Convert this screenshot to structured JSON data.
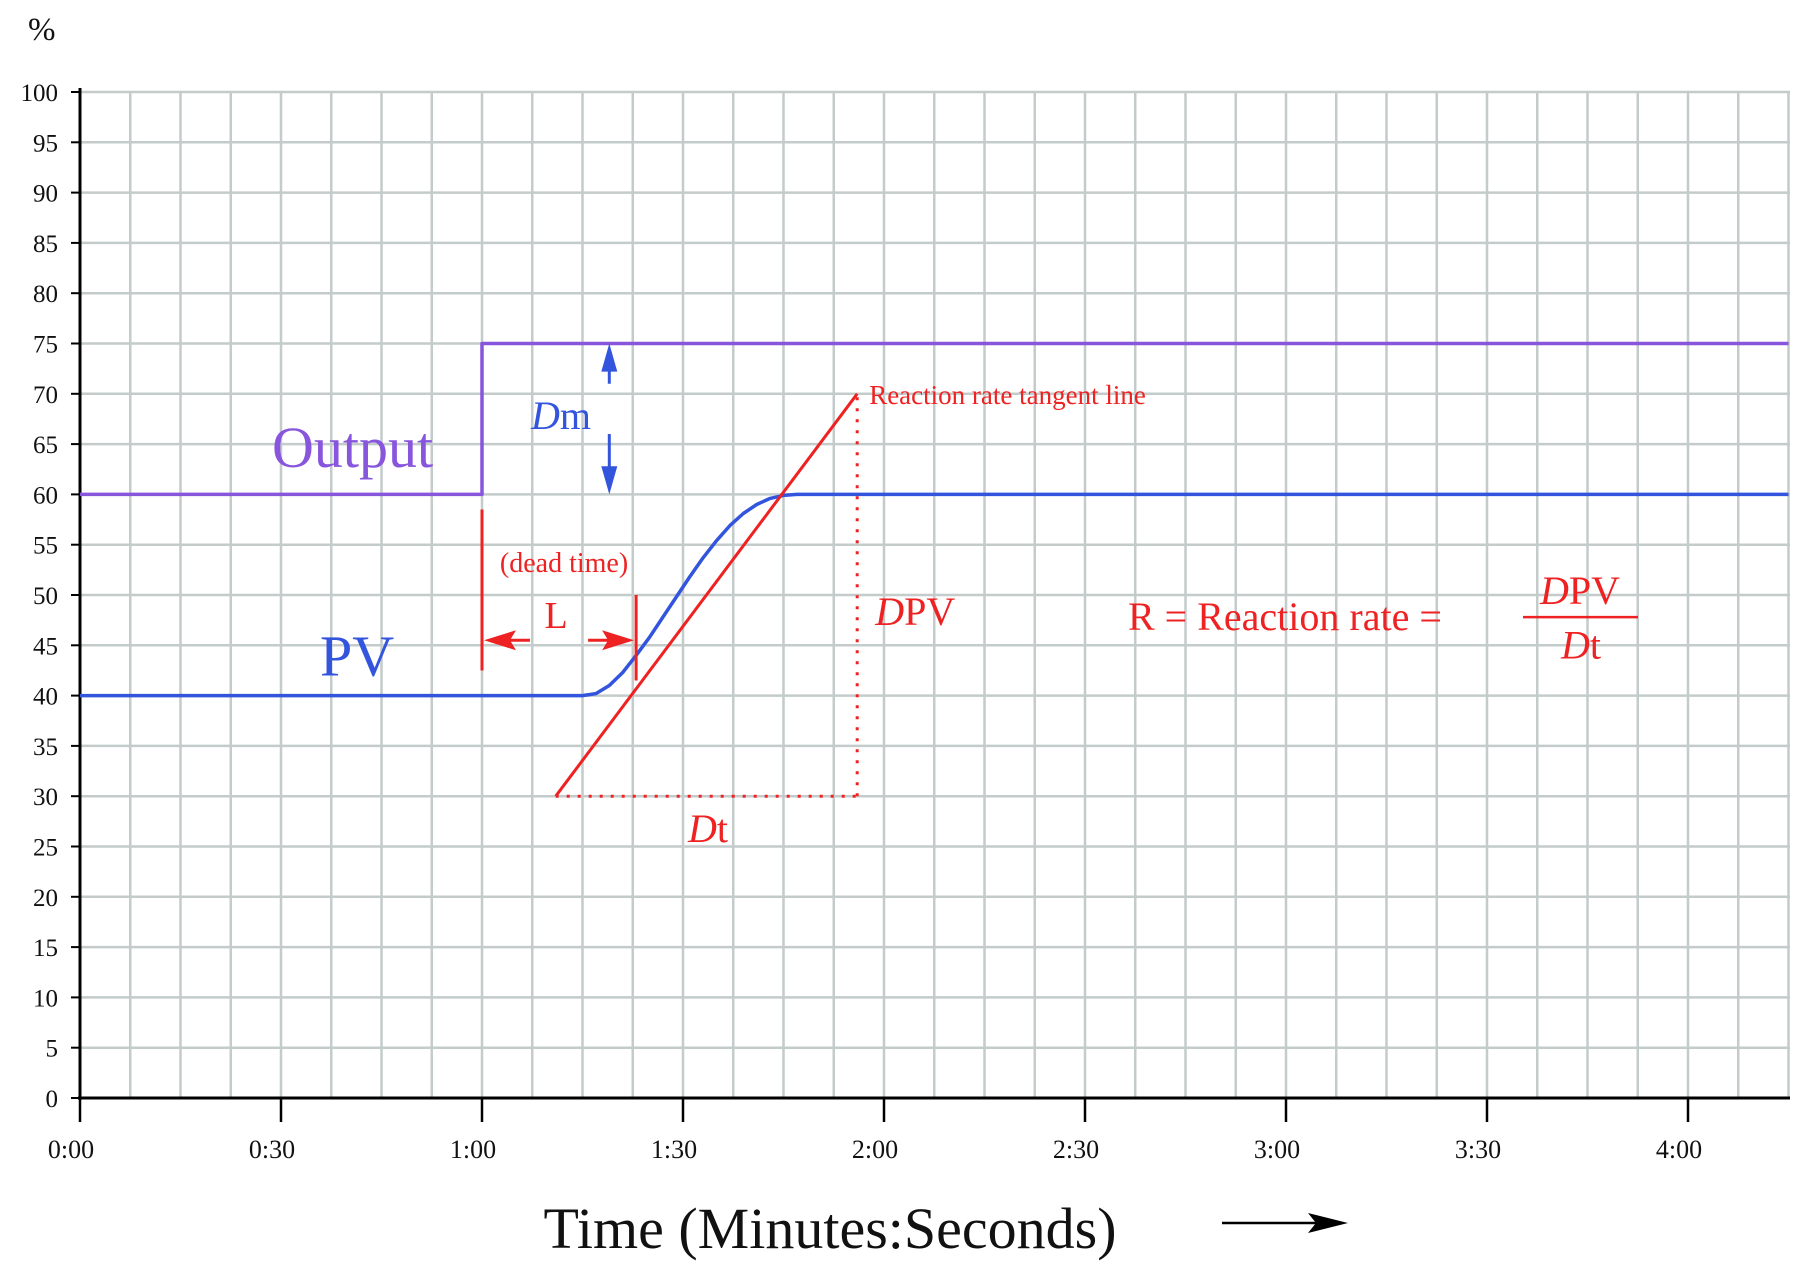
{
  "chart_data": {
    "type": "line",
    "y_unit_label": "%",
    "xlabel": "Time (Minutes:Seconds)",
    "x_tick_labels": [
      "0:00",
      "0:30",
      "1:00",
      "1:30",
      "2:00",
      "2:30",
      "3:00",
      "3:30",
      "4:00"
    ],
    "y_tick_labels": [
      "0",
      "5",
      "10",
      "15",
      "20",
      "25",
      "30",
      "35",
      "40",
      "45",
      "50",
      "55",
      "60",
      "65",
      "70",
      "75",
      "80",
      "85",
      "90",
      "95",
      "100"
    ],
    "xlim_seconds": [
      0,
      255
    ],
    "ylim": [
      0,
      100
    ],
    "grid": true,
    "x_minor_step_seconds": 7.5,
    "y_major_step": 5,
    "series": [
      {
        "name": "Output",
        "color": "#8855dd",
        "x_seconds": [
          0,
          60,
          60,
          255
        ],
        "values": [
          60,
          60,
          75,
          75
        ]
      },
      {
        "name": "PV",
        "color": "#3355dd",
        "x_seconds": [
          0,
          75,
          77,
          79,
          81,
          83,
          85,
          87,
          89,
          91,
          93,
          95,
          97,
          99,
          101,
          103,
          105,
          107,
          109,
          111,
          113,
          115,
          255
        ],
        "values": [
          40,
          40,
          40.2,
          41,
          42.3,
          44,
          45.8,
          47.8,
          49.8,
          51.8,
          53.7,
          55.4,
          56.9,
          58.1,
          59,
          59.6,
          59.9,
          60,
          60,
          60,
          60,
          60,
          60
        ]
      }
    ],
    "tangent_line": {
      "color": "#ee2222",
      "from": {
        "x_seconds": 71,
        "y": 30
      },
      "to": {
        "x_seconds": 116,
        "y": 70
      },
      "label": "Reaction rate tangent line"
    },
    "annotations": {
      "delta_pv": {
        "italic": "D",
        "rest": "PV",
        "x_seconds": 116,
        "y_range": [
          30,
          70
        ]
      },
      "delta_t": {
        "italic": "D",
        "rest": "t",
        "x_range_seconds": [
          71,
          116
        ],
        "y": 30
      },
      "delta_m": {
        "italic": "D",
        "rest": "m",
        "x_seconds": 79,
        "y_range": [
          60,
          75
        ]
      },
      "dead_time": {
        "label": "L",
        "note": "(dead time)",
        "x_range_seconds": [
          60,
          83
        ]
      },
      "output_label": "Output",
      "pv_label": "PV",
      "formula": {
        "lhs": "R = Reaction rate =",
        "numerator_italic": "D",
        "numerator_rest": "PV",
        "denominator_italic": "D",
        "denominator_rest": "t"
      }
    }
  }
}
